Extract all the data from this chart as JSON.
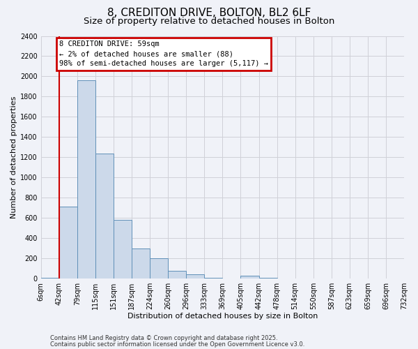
{
  "title_line1": "8, CREDITON DRIVE, BOLTON, BL2 6LF",
  "title_line2": "Size of property relative to detached houses in Bolton",
  "xlabel": "Distribution of detached houses by size in Bolton",
  "ylabel": "Number of detached properties",
  "bin_labels": [
    "6sqm",
    "42sqm",
    "79sqm",
    "115sqm",
    "151sqm",
    "187sqm",
    "224sqm",
    "260sqm",
    "296sqm",
    "333sqm",
    "369sqm",
    "405sqm",
    "442sqm",
    "478sqm",
    "514sqm",
    "550sqm",
    "587sqm",
    "623sqm",
    "659sqm",
    "696sqm",
    "732sqm"
  ],
  "bar_values": [
    10,
    710,
    1960,
    1240,
    580,
    300,
    200,
    80,
    45,
    10,
    0,
    30,
    10,
    0,
    0,
    0,
    0,
    0,
    0,
    0
  ],
  "bar_color": "#ccd9ea",
  "bar_edge_color": "#6090b8",
  "vline_x": 1,
  "annotation_line1": "8 CREDITON DRIVE: 59sqm",
  "annotation_line2": "← 2% of detached houses are smaller (88)",
  "annotation_line3": "98% of semi-detached houses are larger (5,117) →",
  "annotation_box_facecolor": "#ffffff",
  "annotation_box_edgecolor": "#cc0000",
  "ylim_max": 2400,
  "ytick_step": 200,
  "grid_color": "#d0d0d8",
  "bg_color": "#f0f2f8",
  "footer_line1": "Contains HM Land Registry data © Crown copyright and database right 2025.",
  "footer_line2": "Contains public sector information licensed under the Open Government Licence v3.0.",
  "title_fontsize": 11,
  "subtitle_fontsize": 9.5,
  "axis_label_fontsize": 8,
  "tick_fontsize": 7,
  "vline_color": "#cc0000",
  "footer_fontsize": 6.0
}
